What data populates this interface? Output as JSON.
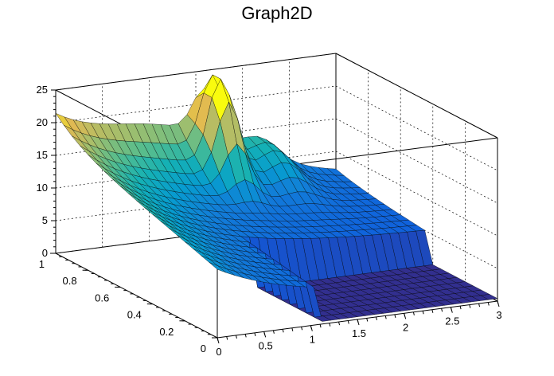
{
  "window": {
    "title": "Graph2D"
  },
  "chart_data": {
    "type": "surface",
    "title": "Graph2D",
    "xlabel": "",
    "ylabel": "",
    "zlabel": "",
    "xlim": [
      0,
      3
    ],
    "ylim": [
      0,
      1
    ],
    "zlim": [
      0,
      25
    ],
    "x_ticks": [
      "0",
      "0.5",
      "1",
      "1.5",
      "2",
      "2.5",
      "3"
    ],
    "y_ticks": [
      "0",
      "0.2",
      "0.4",
      "0.6",
      "0.8",
      "1"
    ],
    "z_ticks": [
      "0",
      "5",
      "10",
      "15",
      "20",
      "25"
    ],
    "colormap": "viridis-like",
    "grid": true,
    "surface_shape": {
      "base_at_x0": 12.5,
      "plateau_z": 6,
      "ridge_at_y1": 14,
      "peak": {
        "x": 1.6,
        "y": 0.9,
        "z": 24
      },
      "secondary_peak": {
        "x": 2.2,
        "y": 0.9,
        "z": 16
      },
      "step_drop_x": 1.1,
      "step_top_at_x_gt_1.1": 5,
      "floor_value": 0
    }
  },
  "colors": {
    "low": "#352a87",
    "mid": "#2fb9a1",
    "high": "#f9fb0e",
    "edge": "#000000"
  }
}
